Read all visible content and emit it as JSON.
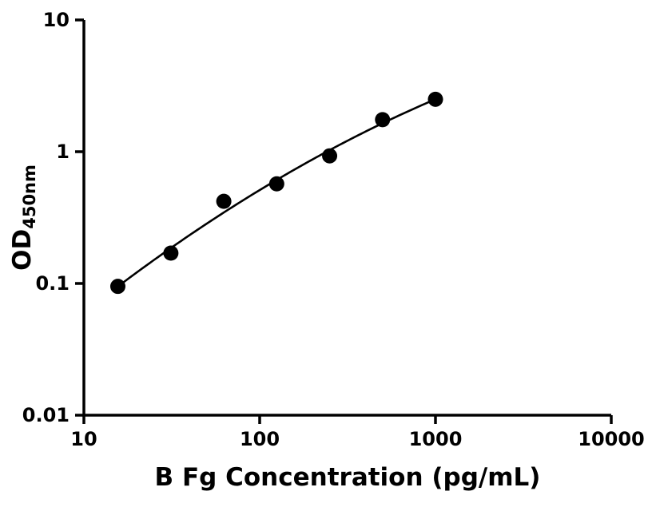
{
  "chart_data": {
    "type": "scatter",
    "title": "",
    "xlabel": "B Fg Concentration (pg/mL)",
    "ylabel": "OD",
    "ylabel_subscript": "450nm",
    "x_scale": "log",
    "y_scale": "log",
    "xlim": [
      10,
      10000
    ],
    "ylim": [
      0.01,
      10
    ],
    "grid": false,
    "legend": null,
    "marker_color": "#000000",
    "line_color": "#000000",
    "axis_color": "#000000",
    "x_ticks": [
      {
        "value": 10,
        "label": "10"
      },
      {
        "value": 100,
        "label": "100"
      },
      {
        "value": 1000,
        "label": "1000"
      },
      {
        "value": 10000,
        "label": "10000"
      }
    ],
    "y_ticks": [
      {
        "value": 0.01,
        "label": "0.01"
      },
      {
        "value": 0.1,
        "label": "0.1"
      },
      {
        "value": 1,
        "label": "1"
      },
      {
        "value": 10,
        "label": "10"
      }
    ],
    "points": [
      {
        "x": 15.6,
        "y": 0.095
      },
      {
        "x": 31.25,
        "y": 0.17
      },
      {
        "x": 62.5,
        "y": 0.42
      },
      {
        "x": 125,
        "y": 0.57
      },
      {
        "x": 250,
        "y": 0.93
      },
      {
        "x": 500,
        "y": 1.75
      },
      {
        "x": 1000,
        "y": 2.5
      }
    ],
    "curve": {
      "type": "quadratic-fit-loglog"
    }
  }
}
